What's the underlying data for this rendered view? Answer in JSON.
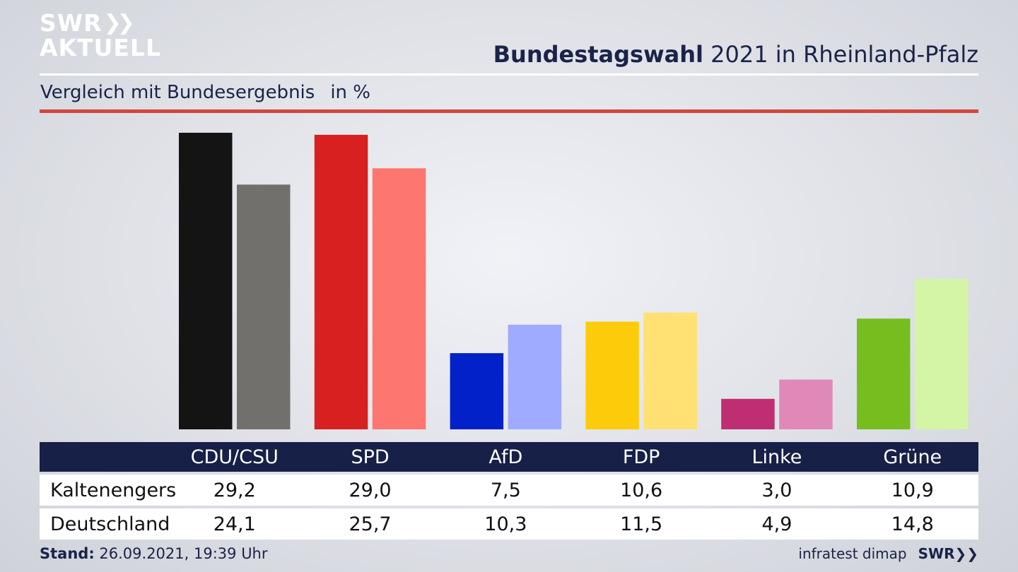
{
  "header": {
    "logo_line1": "SWR",
    "logo_line2": "AKTUELL",
    "title_bold": "Bundestagswahl",
    "title_rest": "2021 in Rheinland-Pfalz",
    "subtitle": "Vergleich mit Bundesergebnis",
    "unit": "in %"
  },
  "footer": {
    "stand_label": "Stand:",
    "stand_value": "26.09.2021, 19:39 Uhr",
    "source": "infratest dimap",
    "brand": "SWR"
  },
  "colors": {
    "title": "#1a2348",
    "table_header": "#172046",
    "accent_rule": "#d0473b"
  },
  "chart_data": {
    "type": "bar",
    "categories": [
      "CDU/CSU",
      "SPD",
      "AfD",
      "FDP",
      "Linke",
      "Grüne"
    ],
    "series": [
      {
        "name": "Kaltenengers",
        "values": [
          29.2,
          29.0,
          7.5,
          10.6,
          3.0,
          10.9
        ],
        "display": [
          "29,2",
          "29,0",
          "7,5",
          "10,6",
          "3,0",
          "10,9"
        ],
        "colors": [
          "#141414",
          "#d7201f",
          "#0221c9",
          "#fccb0a",
          "#bf2e72",
          "#76be1e"
        ]
      },
      {
        "name": "Deutschland",
        "values": [
          24.1,
          25.7,
          10.3,
          11.5,
          4.9,
          14.8
        ],
        "display": [
          "24,1",
          "25,7",
          "10,3",
          "11,5",
          "4,9",
          "14,8"
        ],
        "colors": [
          "#72706d",
          "#fd7670",
          "#9eabfe",
          "#fee073",
          "#e089b8",
          "#d3f5a5"
        ]
      }
    ]
  }
}
